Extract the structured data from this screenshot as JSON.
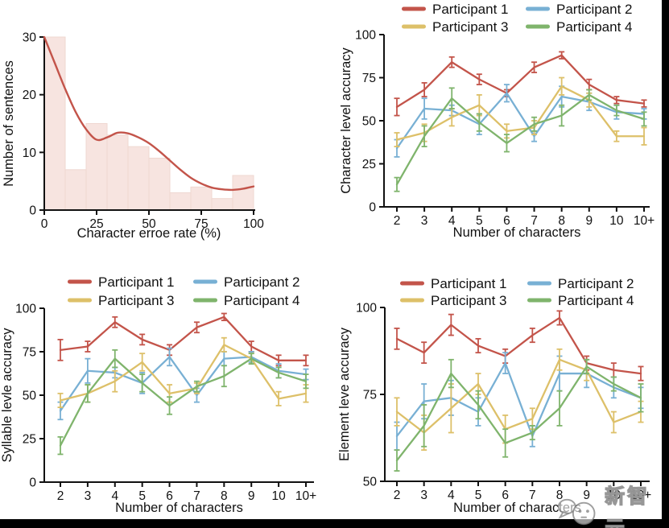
{
  "palette": {
    "participant1": "#c3544a",
    "participant2": "#78b0d4",
    "participant3": "#ddc069",
    "participant4": "#7fb46c",
    "axis": "#111111",
    "hist_fill": "#f7e4e0",
    "hist_stroke": "#efd7d1",
    "frame": "#000000"
  },
  "watermark": {
    "text": "新智元",
    "logo": "speech-bubble-logo"
  },
  "chart_data": [
    {
      "id": "cer-histogram",
      "type": "bar",
      "title": "",
      "xlabel": "Character erroe rate (%)",
      "ylabel": "Number of sentences",
      "xlim": [
        0,
        100
      ],
      "ylim": [
        0,
        30
      ],
      "xticks": [
        0,
        25,
        50,
        75,
        100
      ],
      "yticks": [
        0,
        10,
        20,
        30
      ],
      "bins": [
        0,
        10,
        20,
        30,
        40,
        50,
        60,
        70,
        80,
        90,
        100
      ],
      "values": [
        30,
        7,
        15,
        13,
        11,
        9,
        3,
        4,
        2,
        6
      ],
      "kde_x": [
        0,
        5,
        10,
        15,
        20,
        25,
        30,
        35,
        40,
        45,
        50,
        55,
        60,
        65,
        70,
        75,
        80,
        85,
        90,
        95,
        100
      ],
      "kde_y": [
        30,
        25.5,
        21,
        17,
        14,
        12.2,
        12.6,
        13.4,
        13.3,
        12.6,
        11.6,
        10.2,
        8.6,
        7,
        5.6,
        4.6,
        3.9,
        3.6,
        3.5,
        3.7,
        4.1
      ],
      "grid": false,
      "legend": []
    },
    {
      "id": "character-level-accuracy",
      "type": "line",
      "title": "",
      "xlabel": "Number of characters",
      "ylabel": "Character level accuracy",
      "categories": [
        "2",
        "3",
        "4",
        "5",
        "6",
        "7",
        "8",
        "9",
        "10",
        "10+"
      ],
      "ylim": [
        0,
        100
      ],
      "yticks": [
        0,
        25,
        50,
        75,
        100
      ],
      "grid": false,
      "legend_position": "top",
      "series": [
        {
          "name": "Participant 1",
          "color_key": "participant1",
          "values": [
            58,
            68,
            84,
            74,
            66,
            81,
            88,
            71,
            62,
            60
          ],
          "err": [
            5,
            4,
            3,
            3,
            2,
            3,
            2,
            3,
            2,
            2
          ]
        },
        {
          "name": "Participant 2",
          "color_key": "participant2",
          "values": [
            34,
            57,
            56,
            48,
            66,
            41,
            64,
            61,
            55,
            54
          ],
          "err": [
            5,
            6,
            3,
            6,
            5,
            3,
            6,
            5,
            4,
            3
          ]
        },
        {
          "name": "Participant 3",
          "color_key": "participant3",
          "values": [
            39,
            43,
            52,
            59,
            44,
            46,
            70,
            62,
            41,
            41
          ],
          "err": [
            4,
            5,
            5,
            6,
            4,
            4,
            5,
            4,
            3,
            5
          ]
        },
        {
          "name": "Participant 4",
          "color_key": "participant4",
          "values": [
            13,
            41,
            63,
            49,
            37,
            48,
            53,
            65,
            56,
            51
          ],
          "err": [
            4,
            6,
            6,
            5,
            5,
            4,
            6,
            3,
            3,
            4
          ]
        }
      ]
    },
    {
      "id": "syllable-level-accuracy",
      "type": "line",
      "title": "",
      "xlabel": "Number of characters",
      "ylabel": "Syllable levle accuracy",
      "categories": [
        "2",
        "3",
        "4",
        "5",
        "6",
        "7",
        "8",
        "9",
        "10",
        "10+"
      ],
      "ylim": [
        0,
        100
      ],
      "yticks": [
        0,
        25,
        50,
        75,
        100
      ],
      "grid": false,
      "legend_position": "top",
      "series": [
        {
          "name": "Participant 1",
          "color_key": "participant1",
          "values": [
            76,
            78,
            92,
            82,
            76,
            89,
            95,
            78,
            70,
            70
          ],
          "err": [
            6,
            3,
            3,
            3,
            3,
            3,
            2,
            3,
            3,
            3
          ]
        },
        {
          "name": "Participant 2",
          "color_key": "participant2",
          "values": [
            41,
            64,
            63,
            57,
            72,
            50,
            71,
            72,
            64,
            62
          ],
          "err": [
            5,
            7,
            3,
            6,
            5,
            4,
            4,
            3,
            4,
            3
          ]
        },
        {
          "name": "Participant 3",
          "color_key": "participant3",
          "values": [
            47,
            51,
            58,
            69,
            51,
            54,
            79,
            71,
            48,
            51
          ],
          "err": [
            4,
            5,
            6,
            5,
            5,
            3,
            4,
            3,
            4,
            5
          ]
        },
        {
          "name": "Participant 4",
          "color_key": "participant4",
          "values": [
            21,
            51,
            71,
            57,
            44,
            55,
            61,
            71,
            63,
            58
          ],
          "err": [
            5,
            5,
            5,
            5,
            5,
            3,
            6,
            3,
            3,
            4
          ]
        }
      ]
    },
    {
      "id": "element-level-accuracy",
      "type": "line",
      "title": "",
      "xlabel": "Number of characters",
      "ylabel": "Element leve accuracy",
      "categories": [
        "2",
        "3",
        "4",
        "5",
        "6",
        "7",
        "8",
        "9",
        "10",
        "10+"
      ],
      "ylim": [
        50,
        100
      ],
      "yticks": [
        50,
        75,
        100
      ],
      "grid": false,
      "legend_position": "top",
      "series": [
        {
          "name": "Participant 1",
          "color_key": "participant1",
          "values": [
            91,
            87,
            95,
            89,
            86,
            92,
            97,
            84,
            82,
            81
          ],
          "err": [
            3,
            3,
            3,
            2,
            2,
            2,
            2,
            2,
            2,
            2
          ]
        },
        {
          "name": "Participant 2",
          "color_key": "participant2",
          "values": [
            63,
            73,
            74,
            70,
            84,
            63,
            81,
            81,
            77,
            74
          ],
          "err": [
            4,
            5,
            5,
            4,
            3,
            3,
            5,
            4,
            3,
            3
          ]
        },
        {
          "name": "Participant 3",
          "color_key": "participant3",
          "values": [
            70,
            64,
            71,
            78,
            65,
            68,
            85,
            82,
            67,
            70
          ],
          "err": [
            4,
            5,
            7,
            3,
            4,
            3,
            3,
            3,
            3,
            3
          ]
        },
        {
          "name": "Participant 4",
          "color_key": "participant4",
          "values": [
            56,
            66,
            81,
            72,
            61,
            64,
            71,
            83,
            78,
            74
          ],
          "err": [
            3,
            6,
            4,
            4,
            4,
            2,
            5,
            2,
            2,
            4
          ]
        }
      ]
    }
  ]
}
